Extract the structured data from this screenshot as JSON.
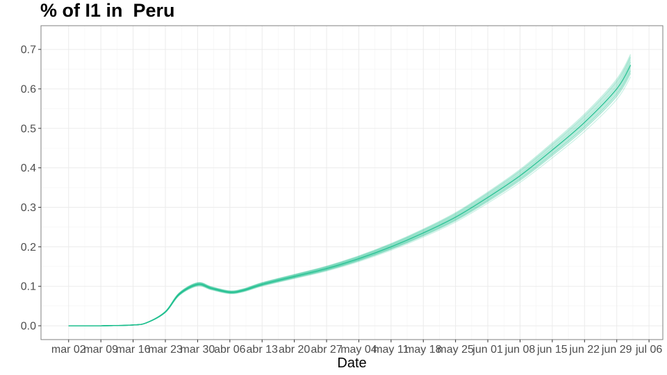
{
  "chart_data": {
    "type": "line",
    "title": "% of I1 in  Peru",
    "xlabel": "Date",
    "ylabel": "",
    "x_tick_labels": [
      "mar 02",
      "mar 09",
      "mar 16",
      "mar 23",
      "mar 30",
      "abr 06",
      "abr 13",
      "abr 20",
      "abr 27",
      "may 04",
      "may 11",
      "may 18",
      "may 25",
      "jun 01",
      "jun 08",
      "jun 15",
      "jun 22",
      "jun 29",
      "jul 06"
    ],
    "y_tick_labels": [
      "0.0",
      "0.1",
      "0.2",
      "0.3",
      "0.4",
      "0.5",
      "0.6",
      "0.7"
    ],
    "ylim": [
      -0.035,
      0.76
    ],
    "xlim_days": [
      -6,
      129
    ],
    "grid": true,
    "color": "#1dbf8e",
    "series_count": 20,
    "spread_scale": 0.05,
    "x": [
      "mar 02",
      "mar 09",
      "mar 16",
      "mar 19",
      "mar 23",
      "mar 26",
      "mar 30",
      "abr 02",
      "abr 06",
      "abr 09",
      "abr 13",
      "abr 20",
      "abr 27",
      "may 04",
      "may 11",
      "may 18",
      "may 25",
      "jun 01",
      "jun 08",
      "jun 15",
      "jun 22",
      "jun 29",
      "jul 02"
    ],
    "y_median": [
      0.0,
      0.0,
      0.002,
      0.008,
      0.035,
      0.08,
      0.105,
      0.095,
      0.085,
      0.09,
      0.105,
      0.125,
      0.145,
      0.17,
      0.2,
      0.235,
      0.275,
      0.325,
      0.38,
      0.445,
      0.515,
      0.6,
      0.66
    ]
  }
}
